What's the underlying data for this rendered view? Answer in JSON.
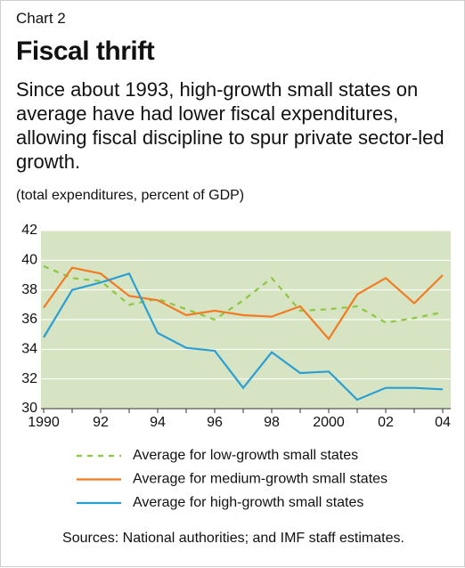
{
  "chart_data": {
    "type": "line",
    "label": "Chart 2",
    "title": "Fiscal thrift",
    "subtitle": "Since about 1993, high-growth small states on average have had lower fiscal expenditures, allowing fiscal discipline to spur private sector-led growth.",
    "y_label": "(total expenditures, percent of GDP)",
    "source": "Sources: National authorities; and IMF staff estimates.",
    "categories": [
      "1990",
      null,
      "92",
      null,
      "94",
      null,
      "96",
      null,
      "98",
      null,
      "2000",
      null,
      "02",
      null,
      "04"
    ],
    "series": [
      {
        "name": "Average for low-growth small states",
        "color": "#8dc63f",
        "dashed": true,
        "values": [
          39.6,
          38.8,
          38.6,
          37.0,
          37.4,
          36.7,
          36.0,
          37.3,
          38.8,
          36.6,
          36.7,
          36.9,
          35.8,
          36.1,
          36.5
        ]
      },
      {
        "name": "Average for medium-growth small states",
        "color": "#f47a20",
        "dashed": false,
        "values": [
          36.8,
          39.5,
          39.1,
          37.6,
          37.3,
          36.3,
          36.6,
          36.3,
          36.2,
          36.9,
          34.7,
          37.7,
          38.8,
          37.1,
          39.0
        ]
      },
      {
        "name": "Average for high-growth small states",
        "color": "#2a9fd6",
        "dashed": false,
        "values": [
          34.8,
          38.0,
          38.5,
          39.1,
          35.1,
          34.1,
          33.9,
          31.4,
          33.8,
          32.4,
          32.5,
          30.6,
          31.4,
          31.4,
          31.3
        ]
      }
    ],
    "ylim": [
      30,
      42
    ],
    "yticks": [
      30,
      32,
      34,
      36,
      38,
      40,
      42
    ],
    "grid": true,
    "plot_color": "#d6e4c4"
  }
}
